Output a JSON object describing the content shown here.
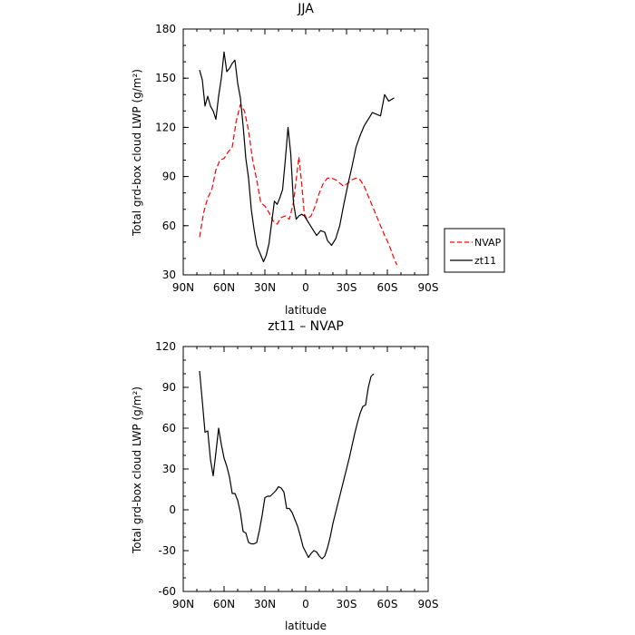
{
  "chart_data": [
    {
      "type": "line",
      "title": "JJA",
      "xlabel": "latitude",
      "ylabel": "Total grd-box cloud LWP (g/m²)",
      "xlim": [
        90,
        -90
      ],
      "ylim": [
        30,
        180
      ],
      "x_ticks": [
        {
          "value": 90,
          "label": "90N"
        },
        {
          "value": 60,
          "label": "60N"
        },
        {
          "value": 30,
          "label": "30N"
        },
        {
          "value": 0,
          "label": "0"
        },
        {
          "value": -30,
          "label": "30S"
        },
        {
          "value": -60,
          "label": "60S"
        },
        {
          "value": -90,
          "label": "90S"
        }
      ],
      "y_ticks": [
        30,
        60,
        90,
        120,
        150,
        180
      ],
      "legend": {
        "placement": "right"
      },
      "series": [
        {
          "name": "NVAP",
          "color": "#ff0000",
          "dash": "dashed",
          "points": [
            [
              78,
              53
            ],
            [
              75,
              68
            ],
            [
              72,
              77
            ],
            [
              69,
              82
            ],
            [
              66,
              94
            ],
            [
              63,
              100
            ],
            [
              60,
              101
            ],
            [
              57,
              105
            ],
            [
              54,
              108
            ],
            [
              51,
              124
            ],
            [
              48,
              134
            ],
            [
              45,
              130
            ],
            [
              42,
              118
            ],
            [
              39,
              100
            ],
            [
              36,
              88
            ],
            [
              33,
              74
            ],
            [
              30,
              72
            ],
            [
              27,
              68
            ],
            [
              24,
              63
            ],
            [
              21,
              61
            ],
            [
              18,
              65
            ],
            [
              15,
              66
            ],
            [
              12,
              64
            ],
            [
              9,
              74
            ],
            [
              6,
              95
            ],
            [
              5,
              102
            ],
            [
              3,
              86
            ],
            [
              1,
              67
            ],
            [
              -1,
              64
            ],
            [
              -4,
              66
            ],
            [
              -7,
              72
            ],
            [
              -10,
              80
            ],
            [
              -13,
              86
            ],
            [
              -16,
              89
            ],
            [
              -19,
              89
            ],
            [
              -22,
              88
            ],
            [
              -25,
              86
            ],
            [
              -28,
              84
            ],
            [
              -31,
              86
            ],
            [
              -34,
              88
            ],
            [
              -37,
              89
            ],
            [
              -40,
              88
            ],
            [
              -43,
              84
            ],
            [
              -46,
              78
            ],
            [
              -49,
              72
            ],
            [
              -52,
              66
            ],
            [
              -55,
              60
            ],
            [
              -58,
              54
            ],
            [
              -61,
              49
            ],
            [
              -64,
              42
            ],
            [
              -67,
              36
            ]
          ]
        },
        {
          "name": "zt11",
          "color": "#000000",
          "dash": "solid",
          "points": [
            [
              78,
              155
            ],
            [
              76,
              149
            ],
            [
              74,
              133
            ],
            [
              72,
              139
            ],
            [
              70,
              133
            ],
            [
              68,
              130
            ],
            [
              66,
              125
            ],
            [
              64,
              139
            ],
            [
              62,
              150
            ],
            [
              60,
              166
            ],
            [
              58,
              154
            ],
            [
              56,
              156
            ],
            [
              54,
              159
            ],
            [
              52,
              161
            ],
            [
              50,
              147
            ],
            [
              48,
              138
            ],
            [
              46,
              121
            ],
            [
              44,
              101
            ],
            [
              42,
              89
            ],
            [
              40,
              70
            ],
            [
              38,
              58
            ],
            [
              36,
              48
            ],
            [
              34,
              44
            ],
            [
              32,
              40
            ],
            [
              31,
              38
            ],
            [
              29,
              42
            ],
            [
              27,
              49
            ],
            [
              25,
              62
            ],
            [
              23,
              75
            ],
            [
              21,
              73
            ],
            [
              19,
              77
            ],
            [
              17,
              82
            ],
            [
              15,
              100
            ],
            [
              13,
              120
            ],
            [
              11,
              104
            ],
            [
              9,
              74
            ],
            [
              7,
              64
            ],
            [
              5,
              66
            ],
            [
              3,
              67
            ],
            [
              1,
              66
            ],
            [
              -2,
              62
            ],
            [
              -5,
              58
            ],
            [
              -8,
              54
            ],
            [
              -11,
              57
            ],
            [
              -14,
              56
            ],
            [
              -16,
              51
            ],
            [
              -19,
              48
            ],
            [
              -22,
              52
            ],
            [
              -25,
              60
            ],
            [
              -28,
              73
            ],
            [
              -31,
              85
            ],
            [
              -34,
              96
            ],
            [
              -37,
              108
            ],
            [
              -40,
              115
            ],
            [
              -43,
              121
            ],
            [
              -46,
              125
            ],
            [
              -49,
              129
            ],
            [
              -52,
              128
            ],
            [
              -55,
              127
            ],
            [
              -58,
              140
            ],
            [
              -61,
              136
            ],
            [
              -65,
              138
            ]
          ]
        }
      ]
    },
    {
      "type": "line",
      "title": "zt11 – NVAP",
      "xlabel": "latitude",
      "ylabel": "Total grd-box cloud LWP (g/m²)",
      "xlim": [
        90,
        -90
      ],
      "ylim": [
        -60,
        120
      ],
      "x_ticks": [
        {
          "value": 90,
          "label": "90N"
        },
        {
          "value": 60,
          "label": "60N"
        },
        {
          "value": 30,
          "label": "30N"
        },
        {
          "value": 0,
          "label": "0"
        },
        {
          "value": -30,
          "label": "30S"
        },
        {
          "value": -60,
          "label": "60S"
        },
        {
          "value": -90,
          "label": "90S"
        }
      ],
      "y_ticks": [
        -60,
        -30,
        0,
        30,
        60,
        90,
        120
      ],
      "series": [
        {
          "color": "#000000",
          "dash": "solid",
          "points": [
            [
              78,
              102
            ],
            [
              76,
              80
            ],
            [
              74,
              57
            ],
            [
              72,
              58
            ],
            [
              70,
              37
            ],
            [
              68,
              25
            ],
            [
              66,
              42
            ],
            [
              64,
              60
            ],
            [
              62,
              48
            ],
            [
              60,
              38
            ],
            [
              58,
              32
            ],
            [
              56,
              24
            ],
            [
              54,
              12
            ],
            [
              52,
              12
            ],
            [
              50,
              7
            ],
            [
              48,
              -2
            ],
            [
              46,
              -16
            ],
            [
              44,
              -17
            ],
            [
              42,
              -24
            ],
            [
              40,
              -25
            ],
            [
              38,
              -25
            ],
            [
              36,
              -24
            ],
            [
              34,
              -15
            ],
            [
              32,
              -4
            ],
            [
              30,
              9
            ],
            [
              28,
              10
            ],
            [
              26,
              10
            ],
            [
              24,
              12
            ],
            [
              22,
              14
            ],
            [
              20,
              17
            ],
            [
              18,
              16
            ],
            [
              16,
              13
            ],
            [
              14,
              1
            ],
            [
              12,
              1
            ],
            [
              10,
              -2
            ],
            [
              8,
              -7
            ],
            [
              6,
              -12
            ],
            [
              4,
              -19
            ],
            [
              2,
              -27
            ],
            [
              0,
              -31
            ],
            [
              -2,
              -35
            ],
            [
              -4,
              -32
            ],
            [
              -6,
              -30
            ],
            [
              -8,
              -31
            ],
            [
              -10,
              -34
            ],
            [
              -12,
              -36
            ],
            [
              -14,
              -34
            ],
            [
              -16,
              -28
            ],
            [
              -18,
              -20
            ],
            [
              -20,
              -10
            ],
            [
              -22,
              -2
            ],
            [
              -24,
              6
            ],
            [
              -26,
              14
            ],
            [
              -28,
              22
            ],
            [
              -30,
              30
            ],
            [
              -32,
              38
            ],
            [
              -34,
              47
            ],
            [
              -36,
              56
            ],
            [
              -38,
              64
            ],
            [
              -40,
              71
            ],
            [
              -42,
              76
            ],
            [
              -44,
              77
            ],
            [
              -46,
              90
            ],
            [
              -48,
              98
            ],
            [
              -50,
              100
            ]
          ]
        }
      ]
    }
  ]
}
